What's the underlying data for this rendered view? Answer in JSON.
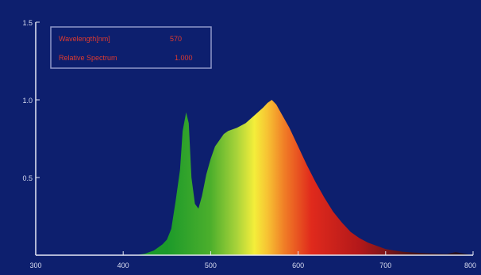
{
  "chart_data": {
    "type": "area",
    "title": "",
    "xlabel": "",
    "ylabel": "",
    "xlim": [
      300,
      800
    ],
    "ylim": [
      0,
      1.5
    ],
    "x_ticks": [
      "300",
      "400",
      "500",
      "600",
      "700",
      "800"
    ],
    "y_ticks": [
      "0.5",
      "1.0",
      "1.5"
    ],
    "grid": false,
    "background_color": "#0d1f6e",
    "readout": {
      "wavelength_label": "Wavelength[nm]",
      "wavelength_value": "570",
      "spectrum_label": "Relative Spectrum",
      "spectrum_value": "1.000"
    },
    "series": [
      {
        "x": [
          415,
          425,
          435,
          440,
          445,
          450,
          455,
          460,
          465,
          468,
          472,
          475,
          478,
          482,
          486,
          490,
          495,
          500,
          505,
          510,
          515,
          520,
          530,
          540,
          550,
          560,
          565,
          570,
          575,
          580,
          590,
          600,
          610,
          620,
          630,
          640,
          650,
          660,
          670,
          680,
          690,
          700,
          710,
          720,
          730,
          740,
          750,
          760,
          770,
          780,
          790,
          800
        ],
        "y": [
          0.0,
          0.01,
          0.03,
          0.05,
          0.07,
          0.1,
          0.17,
          0.35,
          0.55,
          0.8,
          0.92,
          0.85,
          0.5,
          0.33,
          0.3,
          0.38,
          0.52,
          0.62,
          0.7,
          0.74,
          0.78,
          0.8,
          0.82,
          0.85,
          0.9,
          0.95,
          0.98,
          1.0,
          0.97,
          0.92,
          0.82,
          0.7,
          0.58,
          0.47,
          0.37,
          0.28,
          0.21,
          0.15,
          0.11,
          0.08,
          0.06,
          0.04,
          0.03,
          0.022,
          0.018,
          0.015,
          0.012,
          0.01,
          0.008,
          0.02,
          0.01,
          0.0
        ]
      }
    ]
  }
}
